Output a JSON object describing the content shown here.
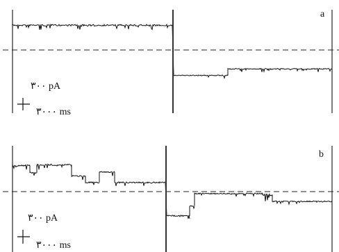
{
  "chart_data": [
    {
      "type": "line",
      "panel_label": "a",
      "scale_bar": {
        "current": "۳۰۰ pA",
        "time": "۳۰۰۰ ms"
      },
      "zero_level": 0,
      "ylim": [
        -600,
        550
      ],
      "xlim": [
        0,
        460
      ],
      "segments": [
        {
          "x": [
            0,
            230
          ],
          "y": [
            380,
            380
          ],
          "noise": 1
        },
        {
          "x": [
            232,
            310
          ],
          "y": [
            -390,
            -390
          ],
          "noise": 0.6
        },
        {
          "x": [
            310,
            460
          ],
          "y": [
            -290,
            -290
          ],
          "noise": 0.6
        }
      ],
      "transition_x": 231
    },
    {
      "type": "line",
      "panel_label": "b",
      "scale_bar": {
        "current": "۳۰۰ pA",
        "time": "۳۰۰۰ ms"
      },
      "zero_level": 0,
      "ylim": [
        -600,
        550
      ],
      "xlim": [
        0,
        460
      ],
      "segments": [
        {
          "x": [
            0,
            25
          ],
          "y": [
            400,
            400
          ],
          "noise": 1
        },
        {
          "x": [
            25,
            35
          ],
          "y": [
            290,
            290
          ],
          "noise": 0.8
        },
        {
          "x": [
            35,
            85
          ],
          "y": [
            410,
            410
          ],
          "noise": 1
        },
        {
          "x": [
            85,
            105
          ],
          "y": [
            240,
            240
          ],
          "noise": 0.8
        },
        {
          "x": [
            105,
            125
          ],
          "y": [
            140,
            140
          ],
          "noise": 0.8
        },
        {
          "x": [
            125,
            147
          ],
          "y": [
            300,
            300
          ],
          "noise": 0.8
        },
        {
          "x": [
            147,
            220
          ],
          "y": [
            140,
            140
          ],
          "noise": 0.8
        },
        {
          "x": [
            222,
            255
          ],
          "y": [
            -370,
            -370
          ],
          "noise": 0.8
        },
        {
          "x": [
            255,
            262
          ],
          "y": [
            -220,
            -220
          ],
          "noise": 0.6
        },
        {
          "x": [
            262,
            360
          ],
          "y": [
            -30,
            -30
          ],
          "noise": 0.7
        },
        {
          "x": [
            360,
            374
          ],
          "y": [
            -50,
            -50
          ],
          "noise": 1.4
        },
        {
          "x": [
            374,
            460
          ],
          "y": [
            -150,
            -150
          ],
          "noise": 0.7
        }
      ],
      "transition_x": 221
    }
  ]
}
